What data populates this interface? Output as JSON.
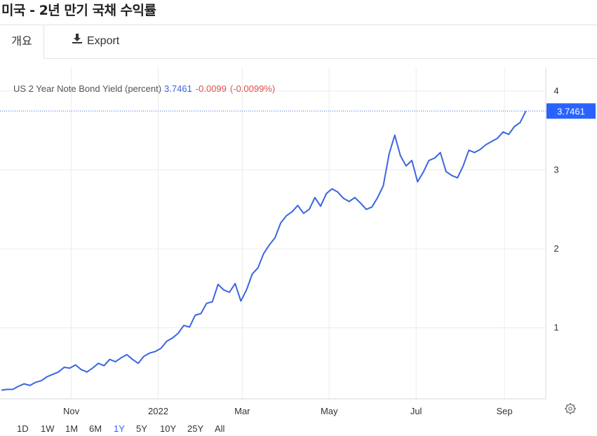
{
  "page": {
    "title": "미국 - 2년 만기 국채 수익률"
  },
  "tabs": {
    "overview": "개요",
    "export": "Export"
  },
  "legend": {
    "series_label": "US 2 Year Note Bond Yield (percent)",
    "value": "3.7461",
    "change": "-0.0099",
    "change_pct": "(-0.0099%)"
  },
  "price_tag": "3.7461",
  "ranges": [
    {
      "label": "1D",
      "active": false
    },
    {
      "label": "1W",
      "active": false
    },
    {
      "label": "1M",
      "active": false
    },
    {
      "label": "6M",
      "active": false
    },
    {
      "label": "1Y",
      "active": true
    },
    {
      "label": "5Y",
      "active": false
    },
    {
      "label": "10Y",
      "active": false
    },
    {
      "label": "25Y",
      "active": false
    },
    {
      "label": "All",
      "active": false
    }
  ],
  "icons": {
    "settings": "gear-icon",
    "export": "download-icon"
  },
  "colors": {
    "line": "#3a66e0",
    "accent": "#2962ff",
    "negative": "#e0514f",
    "grid": "#ececec"
  },
  "chart_data": {
    "type": "line",
    "title": "US 2 Year Note Bond Yield (percent)",
    "xlabel": "",
    "ylabel": "",
    "x_ticks": [
      "Nov",
      "2022",
      "Mar",
      "May",
      "Jul",
      "Sep"
    ],
    "x_tick_dates": [
      "2021-11-01",
      "2022-01-01",
      "2022-03-01",
      "2022-05-01",
      "2022-07-01",
      "2022-09-01"
    ],
    "y_ticks": [
      1,
      2,
      3,
      4
    ],
    "ylim": [
      0.1,
      4.3
    ],
    "xlim": [
      "2021-09-12",
      "2022-09-30"
    ],
    "last_value": 3.7461,
    "grid": true,
    "series": [
      {
        "values": [
          [
            "2021-09-13",
            0.21
          ],
          [
            "2021-09-17",
            0.22
          ],
          [
            "2021-09-21",
            0.22
          ],
          [
            "2021-09-25",
            0.26
          ],
          [
            "2021-09-29",
            0.29
          ],
          [
            "2021-10-03",
            0.27
          ],
          [
            "2021-10-07",
            0.31
          ],
          [
            "2021-10-11",
            0.33
          ],
          [
            "2021-10-15",
            0.38
          ],
          [
            "2021-10-19",
            0.41
          ],
          [
            "2021-10-23",
            0.44
          ],
          [
            "2021-10-27",
            0.5
          ],
          [
            "2021-10-31",
            0.49
          ],
          [
            "2021-11-04",
            0.53
          ],
          [
            "2021-11-08",
            0.47
          ],
          [
            "2021-11-12",
            0.44
          ],
          [
            "2021-11-16",
            0.49
          ],
          [
            "2021-11-20",
            0.55
          ],
          [
            "2021-11-24",
            0.52
          ],
          [
            "2021-11-28",
            0.6
          ],
          [
            "2021-12-02",
            0.57
          ],
          [
            "2021-12-06",
            0.62
          ],
          [
            "2021-12-10",
            0.66
          ],
          [
            "2021-12-14",
            0.6
          ],
          [
            "2021-12-18",
            0.55
          ],
          [
            "2021-12-22",
            0.64
          ],
          [
            "2021-12-26",
            0.68
          ],
          [
            "2021-12-30",
            0.7
          ],
          [
            "2022-01-03",
            0.74
          ],
          [
            "2022-01-07",
            0.83
          ],
          [
            "2022-01-11",
            0.87
          ],
          [
            "2022-01-15",
            0.93
          ],
          [
            "2022-01-19",
            1.03
          ],
          [
            "2022-01-23",
            1.01
          ],
          [
            "2022-01-27",
            1.16
          ],
          [
            "2022-01-31",
            1.18
          ],
          [
            "2022-02-04",
            1.31
          ],
          [
            "2022-02-08",
            1.33
          ],
          [
            "2022-02-12",
            1.55
          ],
          [
            "2022-02-16",
            1.48
          ],
          [
            "2022-02-20",
            1.45
          ],
          [
            "2022-02-24",
            1.56
          ],
          [
            "2022-02-28",
            1.34
          ],
          [
            "2022-03-04",
            1.48
          ],
          [
            "2022-03-08",
            1.68
          ],
          [
            "2022-03-12",
            1.76
          ],
          [
            "2022-03-16",
            1.94
          ],
          [
            "2022-03-20",
            2.05
          ],
          [
            "2022-03-24",
            2.14
          ],
          [
            "2022-03-28",
            2.33
          ],
          [
            "2022-04-01",
            2.42
          ],
          [
            "2022-04-05",
            2.47
          ],
          [
            "2022-04-09",
            2.55
          ],
          [
            "2022-04-13",
            2.45
          ],
          [
            "2022-04-17",
            2.5
          ],
          [
            "2022-04-21",
            2.65
          ],
          [
            "2022-04-25",
            2.54
          ],
          [
            "2022-04-29",
            2.7
          ],
          [
            "2022-05-03",
            2.76
          ],
          [
            "2022-05-07",
            2.72
          ],
          [
            "2022-05-11",
            2.64
          ],
          [
            "2022-05-15",
            2.6
          ],
          [
            "2022-05-19",
            2.65
          ],
          [
            "2022-05-23",
            2.58
          ],
          [
            "2022-05-27",
            2.5
          ],
          [
            "2022-05-31",
            2.53
          ],
          [
            "2022-06-04",
            2.65
          ],
          [
            "2022-06-08",
            2.8
          ],
          [
            "2022-06-12",
            3.2
          ],
          [
            "2022-06-16",
            3.44
          ],
          [
            "2022-06-20",
            3.18
          ],
          [
            "2022-06-24",
            3.05
          ],
          [
            "2022-06-28",
            3.12
          ],
          [
            "2022-07-02",
            2.85
          ],
          [
            "2022-07-06",
            2.97
          ],
          [
            "2022-07-10",
            3.12
          ],
          [
            "2022-07-14",
            3.15
          ],
          [
            "2022-07-18",
            3.22
          ],
          [
            "2022-07-22",
            2.98
          ],
          [
            "2022-07-26",
            2.93
          ],
          [
            "2022-07-30",
            2.9
          ],
          [
            "2022-08-03",
            3.05
          ],
          [
            "2022-08-07",
            3.25
          ],
          [
            "2022-08-11",
            3.22
          ],
          [
            "2022-08-15",
            3.26
          ],
          [
            "2022-08-19",
            3.32
          ],
          [
            "2022-08-23",
            3.36
          ],
          [
            "2022-08-27",
            3.4
          ],
          [
            "2022-08-31",
            3.48
          ],
          [
            "2022-09-04",
            3.45
          ],
          [
            "2022-09-08",
            3.55
          ],
          [
            "2022-09-12",
            3.6
          ],
          [
            "2022-09-16",
            3.7461
          ]
        ]
      }
    ]
  }
}
